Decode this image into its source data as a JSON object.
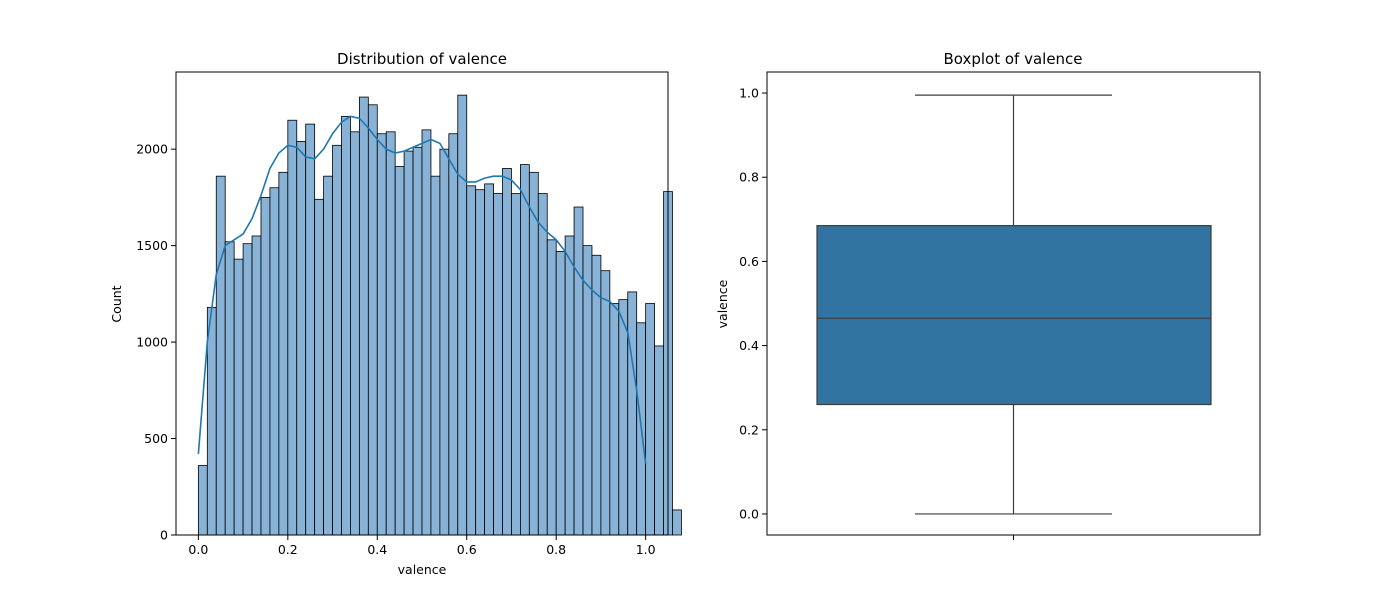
{
  "chart_data": [
    {
      "type": "bar",
      "title": "Distribution of valence",
      "xlabel": "valence",
      "ylabel": "Count",
      "xlim": [
        -0.05,
        1.05
      ],
      "ylim": [
        0,
        2400
      ],
      "xticks": [
        "0.0",
        "0.2",
        "0.4",
        "0.6",
        "0.8",
        "1.0"
      ],
      "yticks": [
        "0",
        "500",
        "1000",
        "1500",
        "2000"
      ],
      "bin_width": 0.02,
      "bin_start": 0.0,
      "values": [
        360,
        1180,
        1860,
        1520,
        1430,
        1510,
        1550,
        1750,
        1800,
        1880,
        2150,
        2040,
        2130,
        1740,
        1860,
        2020,
        2170,
        2090,
        2270,
        2230,
        2080,
        2090,
        1910,
        1990,
        2010,
        2100,
        1860,
        2000,
        2080,
        2280,
        1810,
        1790,
        1820,
        1770,
        1900,
        1770,
        1920,
        1880,
        1770,
        1530,
        1470,
        1550,
        1700,
        1500,
        1450,
        1370,
        1200,
        1220,
        1260,
        1100,
        1200,
        980,
        1780,
        130
      ],
      "kde": {
        "x": [
          0.0,
          0.02,
          0.04,
          0.06,
          0.08,
          0.1,
          0.12,
          0.14,
          0.16,
          0.18,
          0.2,
          0.22,
          0.24,
          0.26,
          0.28,
          0.3,
          0.32,
          0.34,
          0.36,
          0.38,
          0.4,
          0.42,
          0.44,
          0.46,
          0.48,
          0.5,
          0.52,
          0.54,
          0.56,
          0.58,
          0.6,
          0.62,
          0.64,
          0.66,
          0.68,
          0.7,
          0.72,
          0.74,
          0.76,
          0.78,
          0.8,
          0.82,
          0.84,
          0.86,
          0.88,
          0.9,
          0.92,
          0.94,
          0.96,
          0.98,
          1.0
        ],
        "y": [
          420,
          1000,
          1350,
          1500,
          1530,
          1560,
          1640,
          1760,
          1900,
          1980,
          2020,
          2010,
          1960,
          1950,
          2000,
          2080,
          2140,
          2170,
          2160,
          2110,
          2050,
          2000,
          1980,
          1990,
          2010,
          2030,
          2050,
          2030,
          1950,
          1870,
          1830,
          1830,
          1850,
          1860,
          1860,
          1840,
          1790,
          1700,
          1620,
          1570,
          1530,
          1470,
          1390,
          1320,
          1270,
          1230,
          1210,
          1160,
          1050,
          750,
          370
        ]
      },
      "color": "#1f77b4",
      "bar_fill": "#89b3d6"
    },
    {
      "type": "box",
      "title": "Boxplot of valence",
      "ylabel": "valence",
      "ylim": [
        -0.05,
        1.05
      ],
      "yticks": [
        "0.0",
        "0.2",
        "0.4",
        "0.6",
        "0.8",
        "1.0"
      ],
      "whisker_low": 0.0,
      "q1": 0.26,
      "median": 0.465,
      "q3": 0.685,
      "whisker_high": 0.995,
      "color": "#3274a1"
    }
  ]
}
